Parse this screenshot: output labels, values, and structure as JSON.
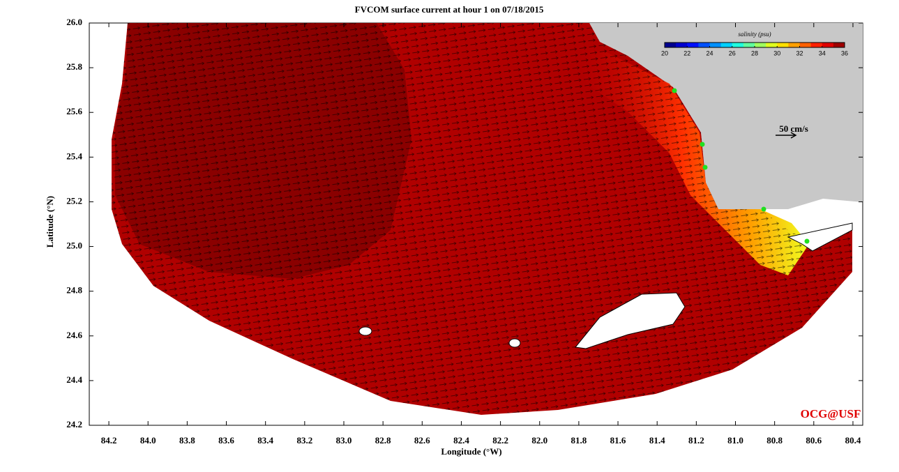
{
  "chart_data": {
    "type": "map",
    "title": "FVCOM surface current at hour 1 on 07/18/2015",
    "xlabel": "Longitude (°W)",
    "ylabel": "Latitude (°N)",
    "xlim": [
      84.3,
      80.35
    ],
    "ylim": [
      24.2,
      26.0
    ],
    "xticks": [
      84.2,
      {
        "value": 84,
        "label": "84.0"
      },
      83.8,
      83.6,
      83.4,
      83.2,
      {
        "value": 83,
        "label": "83.0"
      },
      82.8,
      82.6,
      82.4,
      82.2,
      {
        "value": 82,
        "label": "82.0"
      },
      81.8,
      81.6,
      81.4,
      81.2,
      {
        "value": 81,
        "label": "81.0"
      },
      80.8,
      80.6,
      80.4
    ],
    "yticks": [
      {
        "value": 26,
        "label": "26.0"
      },
      25.8,
      25.6,
      25.4,
      25.2,
      {
        "value": 25,
        "label": "25.0"
      },
      24.8,
      24.6,
      24.4,
      24.2
    ],
    "colorbar": {
      "label": "salinity (psu)",
      "lim": [
        20,
        36
      ],
      "ticks": [
        20,
        22,
        24,
        26,
        28,
        30,
        32,
        34,
        36
      ],
      "colors": [
        "#00008f",
        "#0000cf",
        "#0010ff",
        "#0050ff",
        "#0090ff",
        "#00d0ff",
        "#20ffdf",
        "#60ff9f",
        "#a0ff60",
        "#dfff20",
        "#ffe000",
        "#ffa000",
        "#ff6000",
        "#ff2000",
        "#df0000",
        "#9f0000"
      ]
    },
    "scale_label": "50 cm/s",
    "credit": "OCG@USF"
  }
}
